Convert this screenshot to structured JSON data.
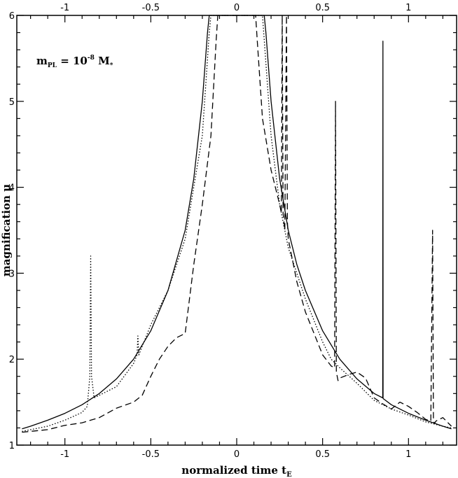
{
  "chart_data": {
    "type": "line",
    "xlabel": "normalized time t",
    "xlabel_sub": "E",
    "ylabel": "magnification μ",
    "annotation": {
      "base": "m",
      "sub": "PL",
      "mid": " = 10",
      "sup": "-8",
      "tail": " M",
      "tail_sub": "*"
    },
    "xlim": [
      -1.28,
      1.28
    ],
    "ylim": [
      1,
      6
    ],
    "x_ticks": [
      -1,
      -0.5,
      0,
      0.5,
      1
    ],
    "x_tick_labels": [
      "-1",
      "-0.5",
      "0",
      "0.5",
      "1"
    ],
    "y_ticks": [
      1,
      2,
      3,
      4,
      5,
      6
    ],
    "y_tick_labels": [
      "1",
      "2",
      "3",
      "4",
      "5",
      "6"
    ],
    "grid": false,
    "series": [
      {
        "style": "solid",
        "x": [
          -1.25,
          -1.2,
          -1.1,
          -1.0,
          -0.9,
          -0.8,
          -0.7,
          -0.6,
          -0.5,
          -0.4,
          -0.3,
          -0.25,
          -0.2,
          -0.17,
          -0.16,
          0.16,
          0.17,
          0.2,
          0.25,
          0.3,
          0.35,
          0.4,
          0.5,
          0.6,
          0.7,
          0.8,
          0.85,
          0.851,
          0.852,
          0.853,
          0.86,
          0.9,
          1.0,
          1.1,
          1.2,
          1.25
        ],
        "y": [
          1.19,
          1.22,
          1.29,
          1.37,
          1.47,
          1.6,
          1.77,
          2.0,
          2.33,
          2.8,
          3.5,
          4.1,
          5.0,
          5.8,
          6.0,
          6.0,
          5.8,
          5.0,
          4.1,
          3.5,
          3.1,
          2.8,
          2.33,
          2.0,
          1.77,
          1.6,
          1.55,
          5.7,
          1.55,
          1.54,
          1.53,
          1.47,
          1.37,
          1.29,
          1.22,
          1.19
        ]
      },
      {
        "style": "dotted",
        "x": [
          -1.25,
          -1.1,
          -1.0,
          -0.9,
          -0.87,
          -0.855,
          -0.85,
          -0.845,
          -0.83,
          -0.8,
          -0.7,
          -0.6,
          -0.58,
          -0.575,
          -0.57,
          -0.55,
          -0.5,
          -0.4,
          -0.3,
          -0.2,
          -0.16,
          -0.15,
          0.15,
          0.2,
          0.25,
          0.3,
          0.4,
          0.5,
          0.55,
          0.6,
          0.7,
          0.8,
          0.9,
          1.0,
          1.1,
          1.2,
          1.25
        ],
        "y": [
          1.16,
          1.22,
          1.29,
          1.38,
          1.45,
          1.8,
          3.2,
          1.8,
          1.55,
          1.58,
          1.68,
          1.95,
          2.05,
          2.27,
          2.05,
          2.15,
          2.4,
          2.8,
          3.4,
          4.6,
          5.8,
          6.0,
          6.0,
          4.6,
          3.8,
          3.3,
          2.7,
          2.2,
          2.0,
          1.9,
          1.72,
          1.52,
          1.42,
          1.35,
          1.27,
          1.22,
          1.2
        ]
      },
      {
        "style": "dashed",
        "x": [
          -1.25,
          -1.1,
          -1.0,
          -0.9,
          -0.8,
          -0.7,
          -0.6,
          -0.55,
          -0.5,
          -0.45,
          -0.4,
          -0.35,
          -0.3,
          -0.25,
          -0.2,
          -0.15,
          -0.12,
          -0.11,
          0.11,
          0.12,
          0.15,
          0.2,
          0.25,
          0.26,
          0.265,
          0.27,
          0.28,
          0.29,
          0.295,
          0.3,
          0.35,
          0.4,
          0.5,
          0.55,
          0.57,
          0.575,
          0.58,
          0.59,
          0.6,
          0.65,
          0.7,
          0.75,
          0.8,
          0.85,
          0.9,
          0.95,
          1.0,
          1.05,
          1.1,
          1.13,
          1.14,
          1.145,
          1.15,
          1.16,
          1.2,
          1.25
        ],
        "y": [
          1.15,
          1.18,
          1.23,
          1.26,
          1.32,
          1.43,
          1.5,
          1.58,
          1.8,
          2.0,
          2.15,
          2.25,
          2.3,
          3.1,
          3.8,
          4.6,
          5.7,
          6.0,
          6.0,
          5.7,
          4.8,
          4.2,
          3.8,
          3.7,
          6.0,
          3.7,
          3.5,
          6.0,
          3.6,
          3.4,
          2.9,
          2.55,
          2.05,
          1.92,
          1.9,
          5.0,
          1.85,
          1.75,
          1.78,
          1.82,
          1.85,
          1.78,
          1.55,
          1.48,
          1.42,
          1.5,
          1.45,
          1.38,
          1.3,
          1.28,
          3.5,
          1.3,
          1.25,
          1.28,
          1.32,
          1.22
        ]
      }
    ]
  }
}
